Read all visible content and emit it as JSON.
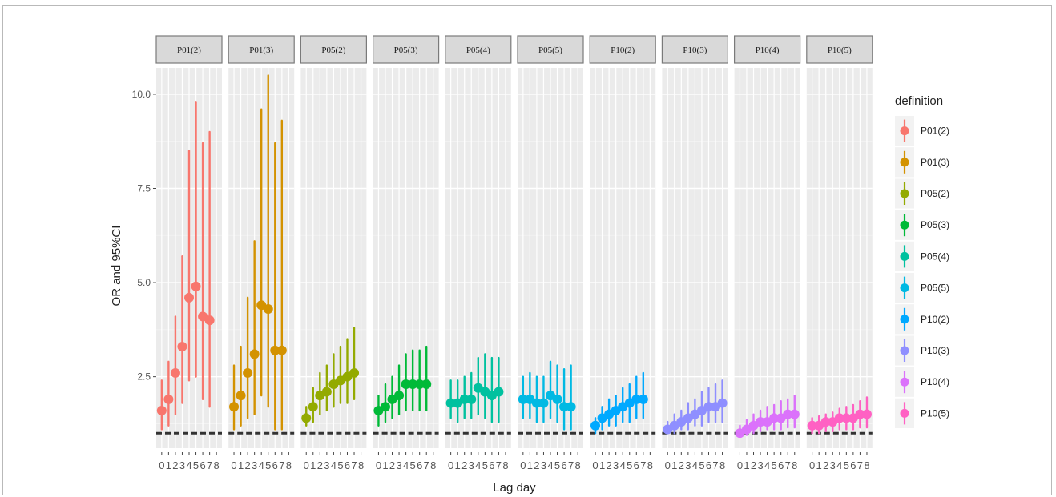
{
  "chart_data": {
    "type": "scatter",
    "subtype": "point-range faceted",
    "title": "",
    "xlabel": "Lag day",
    "ylabel": "OR and 95%CI",
    "x": [
      0,
      1,
      2,
      3,
      4,
      5,
      6,
      7,
      8
    ],
    "x_tick_labels": [
      "0",
      "1",
      "2",
      "3",
      "4",
      "5",
      "6",
      "7",
      "8"
    ],
    "ylim": [
      0.6,
      10.7
    ],
    "y_ticks": [
      2.5,
      5.0,
      7.5,
      10.0
    ],
    "y_tick_labels": [
      "2.5",
      "5.0",
      "7.5",
      "10.0"
    ],
    "reference_line": 1,
    "grid": true,
    "legend": {
      "title": "definition",
      "placement": "right"
    },
    "panels": [
      {
        "name": "P01(2)",
        "color": "#F8766D",
        "or": [
          1.6,
          1.9,
          2.6,
          3.3,
          4.6,
          4.9,
          4.1,
          4.0,
          null
        ],
        "lower": [
          1.1,
          1.2,
          1.5,
          1.8,
          2.4,
          2.5,
          1.9,
          1.7,
          null
        ],
        "upper": [
          2.4,
          2.9,
          4.1,
          5.7,
          8.5,
          9.8,
          8.7,
          9.0,
          null
        ]
      },
      {
        "name": "P01(3)",
        "color": "#D39200",
        "or": [
          1.7,
          2.0,
          2.6,
          3.1,
          4.4,
          4.3,
          3.2,
          3.2,
          null
        ],
        "lower": [
          1.1,
          1.2,
          1.4,
          1.5,
          2.0,
          1.7,
          1.1,
          1.1,
          null
        ],
        "upper": [
          2.8,
          3.3,
          4.6,
          6.1,
          9.6,
          10.5,
          8.7,
          9.3,
          null
        ]
      },
      {
        "name": "P05(2)",
        "color": "#93AA00",
        "or": [
          1.4,
          1.7,
          2.0,
          2.1,
          2.3,
          2.4,
          2.5,
          2.6,
          null
        ],
        "lower": [
          1.2,
          1.3,
          1.5,
          1.6,
          1.7,
          1.8,
          1.8,
          1.9,
          null
        ],
        "upper": [
          1.7,
          2.2,
          2.6,
          2.8,
          3.1,
          3.3,
          3.5,
          3.8,
          null
        ]
      },
      {
        "name": "P05(3)",
        "color": "#00BA38",
        "or": [
          1.6,
          1.7,
          1.9,
          2.0,
          2.3,
          2.3,
          2.3,
          2.3,
          null
        ],
        "lower": [
          1.2,
          1.3,
          1.4,
          1.5,
          1.6,
          1.6,
          1.6,
          1.6,
          null
        ],
        "upper": [
          2.0,
          2.3,
          2.5,
          2.8,
          3.1,
          3.2,
          3.2,
          3.3,
          null
        ]
      },
      {
        "name": "P05(4)",
        "color": "#00C19F",
        "or": [
          1.8,
          1.8,
          1.9,
          1.9,
          2.2,
          2.1,
          2.0,
          2.1,
          null
        ],
        "lower": [
          1.4,
          1.3,
          1.4,
          1.4,
          1.5,
          1.4,
          1.3,
          1.3,
          null
        ],
        "upper": [
          2.4,
          2.4,
          2.5,
          2.6,
          3.0,
          3.1,
          3.0,
          3.0,
          null
        ]
      },
      {
        "name": "P05(5)",
        "color": "#00B9E3",
        "or": [
          1.9,
          1.9,
          1.8,
          1.8,
          2.0,
          1.9,
          1.7,
          1.7,
          null
        ],
        "lower": [
          1.4,
          1.4,
          1.3,
          1.3,
          1.4,
          1.3,
          1.1,
          1.1,
          null
        ],
        "upper": [
          2.5,
          2.6,
          2.5,
          2.5,
          2.9,
          2.8,
          2.7,
          2.8,
          null
        ]
      },
      {
        "name": "P10(2)",
        "color": "#00A9FF",
        "or": [
          1.2,
          1.4,
          1.5,
          1.6,
          1.7,
          1.8,
          1.9,
          1.9,
          null
        ],
        "lower": [
          1.0,
          1.1,
          1.2,
          1.2,
          1.3,
          1.3,
          1.4,
          1.4,
          null
        ],
        "upper": [
          1.4,
          1.7,
          1.9,
          2.0,
          2.2,
          2.3,
          2.5,
          2.6,
          null
        ]
      },
      {
        "name": "P10(3)",
        "color": "#8F8FFF",
        "or": [
          1.1,
          1.2,
          1.3,
          1.4,
          1.5,
          1.6,
          1.7,
          1.7,
          1.8
        ],
        "lower": [
          1.0,
          1.0,
          1.1,
          1.1,
          1.2,
          1.2,
          1.3,
          1.3,
          1.3
        ],
        "upper": [
          1.3,
          1.5,
          1.6,
          1.8,
          1.9,
          2.1,
          2.2,
          2.3,
          2.4
        ]
      },
      {
        "name": "P10(4)",
        "color": "#DB72FB",
        "or": [
          1.0,
          1.1,
          1.2,
          1.3,
          1.3,
          1.4,
          1.4,
          1.5,
          1.5
        ],
        "lower": [
          0.9,
          0.95,
          1.0,
          1.05,
          1.1,
          1.1,
          1.1,
          1.15,
          1.15
        ],
        "upper": [
          1.2,
          1.35,
          1.5,
          1.6,
          1.7,
          1.75,
          1.85,
          1.9,
          2.0
        ]
      },
      {
        "name": "P10(5)",
        "color": "#FF61C3",
        "or": [
          1.2,
          1.2,
          1.3,
          1.3,
          1.4,
          1.4,
          1.4,
          1.5,
          1.5
        ],
        "lower": [
          1.0,
          1.0,
          1.05,
          1.05,
          1.1,
          1.1,
          1.1,
          1.15,
          1.15
        ],
        "upper": [
          1.4,
          1.45,
          1.5,
          1.55,
          1.65,
          1.7,
          1.75,
          1.85,
          1.95
        ]
      }
    ]
  }
}
